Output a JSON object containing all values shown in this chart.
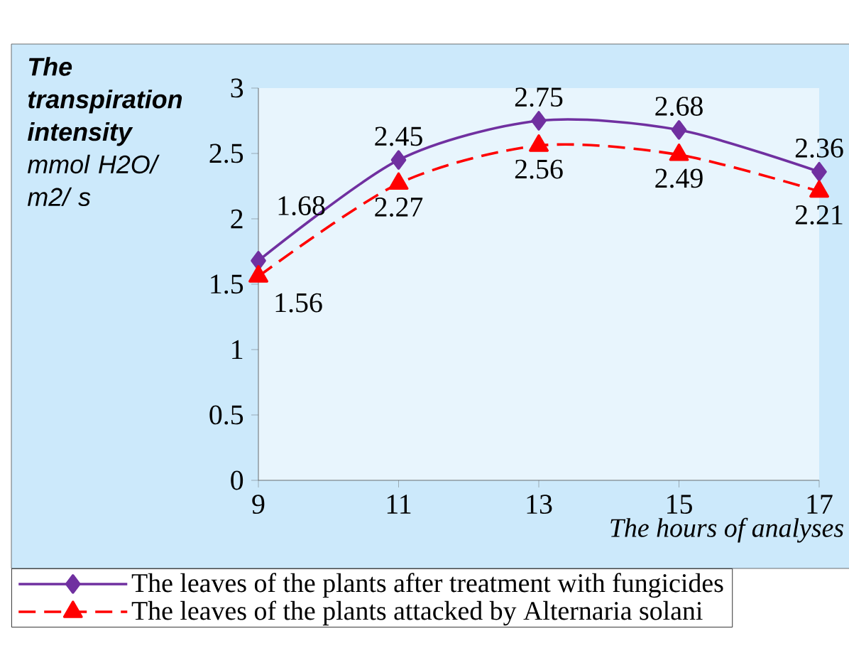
{
  "chart_data": {
    "type": "line",
    "ylabel": "**The transpiration intensity** mmol H2O/ m2/ s",
    "xlabel": "The hours of analyses",
    "x": [
      9,
      11,
      13,
      15,
      17
    ],
    "series": [
      {
        "name": "The leaves of the plants after treatment with fungicides",
        "color": "#7030a0",
        "values": [
          1.68,
          2.45,
          2.75,
          2.68,
          2.36
        ],
        "marker": "diamond",
        "line_style": "solid"
      },
      {
        "name": "The leaves of the plants attacked by Alternaria solani",
        "color": "#ff0000",
        "values": [
          1.56,
          2.27,
          2.56,
          2.49,
          2.21
        ],
        "marker": "triangle",
        "line_style": "dashed"
      }
    ],
    "xlim": [
      9,
      17
    ],
    "xticks": [
      9,
      11,
      13,
      15,
      17
    ],
    "ylim": [
      0,
      3
    ],
    "yticks": [
      0,
      0.5,
      1,
      1.5,
      2,
      2.5,
      3
    ],
    "data_labels": true,
    "legend": "bottom",
    "grid": false
  }
}
